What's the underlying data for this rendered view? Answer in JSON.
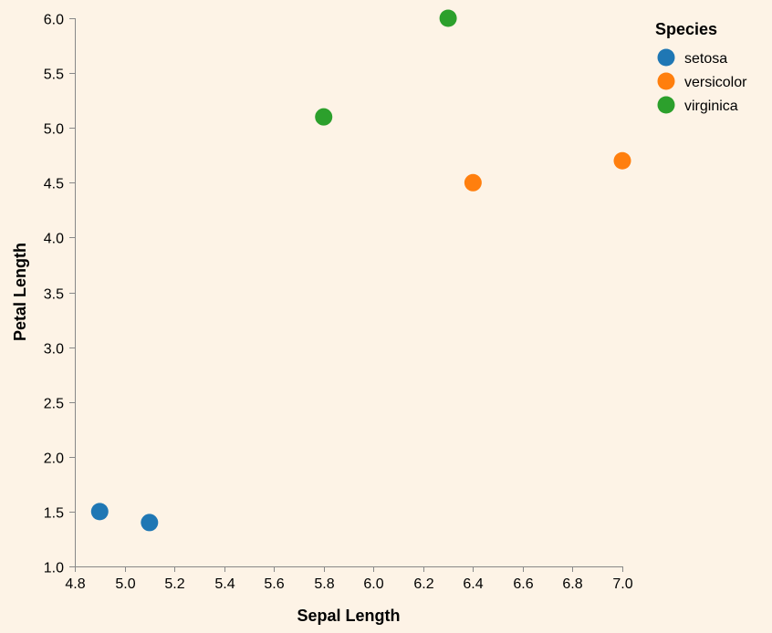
{
  "chart_data": {
    "type": "scatter",
    "title": "",
    "xlabel": "Sepal Length",
    "ylabel": "Petal Length",
    "xlim": [
      4.8,
      7.0
    ],
    "ylim": [
      1.0,
      6.0
    ],
    "x_ticks": [
      "4.8",
      "5.0",
      "5.2",
      "5.4",
      "5.6",
      "5.8",
      "6.0",
      "6.2",
      "6.4",
      "6.6",
      "6.8",
      "7.0"
    ],
    "y_ticks": [
      "1.0",
      "1.5",
      "2.0",
      "2.5",
      "3.0",
      "3.5",
      "4.0",
      "4.5",
      "5.0",
      "5.5",
      "6.0"
    ],
    "grid": false,
    "legend": {
      "title": "Species",
      "placement": "top-right",
      "entries": [
        {
          "name": "setosa",
          "color": "#1f77b4"
        },
        {
          "name": "versicolor",
          "color": "#ff7f0e"
        },
        {
          "name": "virginica",
          "color": "#2ca02c"
        }
      ]
    },
    "series": [
      {
        "name": "setosa",
        "color": "#1f77b4",
        "points": [
          {
            "x": 4.9,
            "y": 1.5
          },
          {
            "x": 5.1,
            "y": 1.4
          }
        ]
      },
      {
        "name": "versicolor",
        "color": "#ff7f0e",
        "points": [
          {
            "x": 6.4,
            "y": 4.5
          },
          {
            "x": 7.0,
            "y": 4.7
          }
        ]
      },
      {
        "name": "virginica",
        "color": "#2ca02c",
        "points": [
          {
            "x": 5.8,
            "y": 5.1
          },
          {
            "x": 6.3,
            "y": 6.0
          }
        ]
      }
    ]
  },
  "colors": {
    "background": "#fdf3e6",
    "axis": "#888888"
  }
}
